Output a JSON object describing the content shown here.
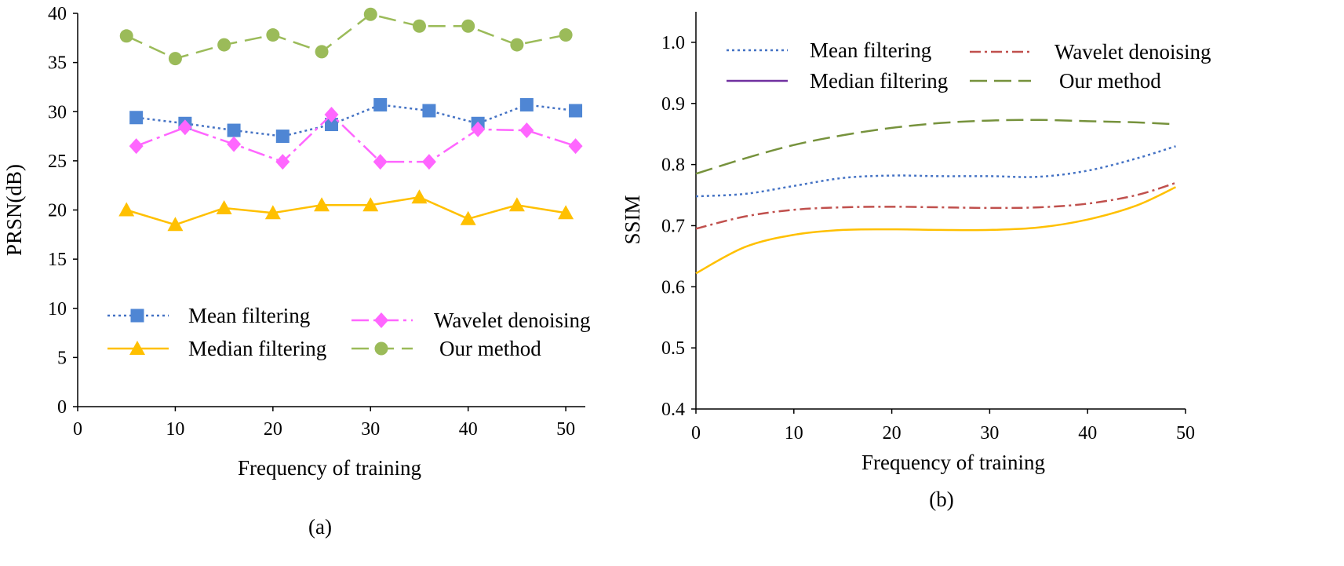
{
  "chart_data": [
    {
      "id": "a",
      "type": "line",
      "caption": "(a)",
      "xlabel": "Frequency of training",
      "ylabel": "PRSN(dB)",
      "xlim": [
        0,
        52
      ],
      "ylim": [
        0,
        40
      ],
      "xticks": [
        "0",
        "10",
        "20",
        "30",
        "40",
        "50"
      ],
      "yticks": [
        "0",
        "5",
        "10",
        "15",
        "20",
        "25",
        "30",
        "35",
        "40"
      ],
      "series": [
        {
          "key": "mean",
          "name": "Mean filtering",
          "color": "#4472C4",
          "markerColor": "#4F86D4",
          "dash": "3,4",
          "marker": "square",
          "x": [
            6,
            11,
            16,
            21,
            26,
            31,
            36,
            41,
            46,
            51
          ],
          "y": [
            29.4,
            28.8,
            28.1,
            27.5,
            28.7,
            30.7,
            30.1,
            28.8,
            30.7,
            30.1
          ]
        },
        {
          "key": "median",
          "name": "Median filtering",
          "color": "#FFC000",
          "markerColor": "#FFC000",
          "dash": "",
          "marker": "triangle",
          "x": [
            5,
            10,
            15,
            20,
            25,
            30,
            35,
            40,
            45,
            50
          ],
          "y": [
            20.0,
            18.5,
            20.2,
            19.7,
            20.5,
            20.5,
            21.3,
            19.1,
            20.5,
            19.7
          ]
        },
        {
          "key": "wavelet",
          "name": "Wavelet denoising",
          "color": "#FF66FF",
          "markerColor": "#FF66FF",
          "dash": "22,6,4,6",
          "marker": "diamond",
          "x": [
            6,
            11,
            16,
            21,
            26,
            31,
            36,
            41,
            46,
            51
          ],
          "y": [
            26.5,
            28.4,
            26.7,
            24.9,
            29.7,
            24.9,
            24.9,
            28.2,
            28.1,
            26.5
          ]
        },
        {
          "key": "ours",
          "name": "Our method",
          "color": "#9BBB59",
          "markerColor": "#9BBB59",
          "dash": "22,10",
          "marker": "circle",
          "x": [
            5,
            10,
            15,
            20,
            25,
            30,
            35,
            40,
            45,
            50
          ],
          "y": [
            37.7,
            35.4,
            36.8,
            37.8,
            36.1,
            39.9,
            38.7,
            38.7,
            36.8,
            37.8
          ]
        }
      ],
      "legend_order": [
        "mean",
        "wavelet",
        "median",
        "ours"
      ]
    },
    {
      "id": "b",
      "type": "line",
      "caption": "(b)",
      "xlabel": "Frequency of training",
      "ylabel": "SSIM",
      "xlim": [
        0,
        50
      ],
      "ylim": [
        0.4,
        1.05
      ],
      "xticks": [
        "0",
        "10",
        "20",
        "30",
        "40",
        "50"
      ],
      "yticks": [
        "0.4",
        "0.5",
        "0.6",
        "0.7",
        "0.8",
        "0.9",
        "1.0"
      ],
      "series": [
        {
          "key": "mean",
          "name": "Mean filtering",
          "color": "#4472C4",
          "dash": "3,4",
          "x": [
            0,
            5,
            10,
            15,
            20,
            25,
            30,
            35,
            40,
            45,
            49
          ],
          "y": [
            0.748,
            0.752,
            0.765,
            0.778,
            0.782,
            0.781,
            0.781,
            0.78,
            0.79,
            0.81,
            0.83
          ]
        },
        {
          "key": "median",
          "name": "Median filtering",
          "color": "#7030A0",
          "dash": "",
          "x": [],
          "y": []
        },
        {
          "key": "wavelet",
          "name": "Wavelet denoising",
          "color": "#C0504D",
          "dash": "14,5,3,5",
          "x": [
            0,
            5,
            10,
            15,
            20,
            25,
            30,
            35,
            40,
            45,
            49
          ],
          "y": [
            0.695,
            0.715,
            0.726,
            0.73,
            0.731,
            0.73,
            0.729,
            0.73,
            0.736,
            0.75,
            0.77
          ]
        },
        {
          "key": "ours",
          "name": "Our method",
          "color": "#76923C",
          "dash": "22,9",
          "x": [
            0,
            5,
            10,
            15,
            20,
            25,
            30,
            35,
            40,
            45,
            49
          ],
          "y": [
            0.785,
            0.81,
            0.832,
            0.848,
            0.86,
            0.868,
            0.872,
            0.873,
            0.871,
            0.869,
            0.866
          ]
        },
        {
          "key": "yellow",
          "name": "",
          "color": "#FFC000",
          "dash": "",
          "x": [
            0,
            5,
            10,
            15,
            20,
            25,
            30,
            35,
            40,
            45,
            49
          ],
          "y": [
            0.622,
            0.665,
            0.685,
            0.693,
            0.694,
            0.693,
            0.693,
            0.697,
            0.71,
            0.733,
            0.763
          ]
        }
      ],
      "legend_order": [
        "mean",
        "wavelet",
        "median",
        "ours"
      ]
    }
  ]
}
